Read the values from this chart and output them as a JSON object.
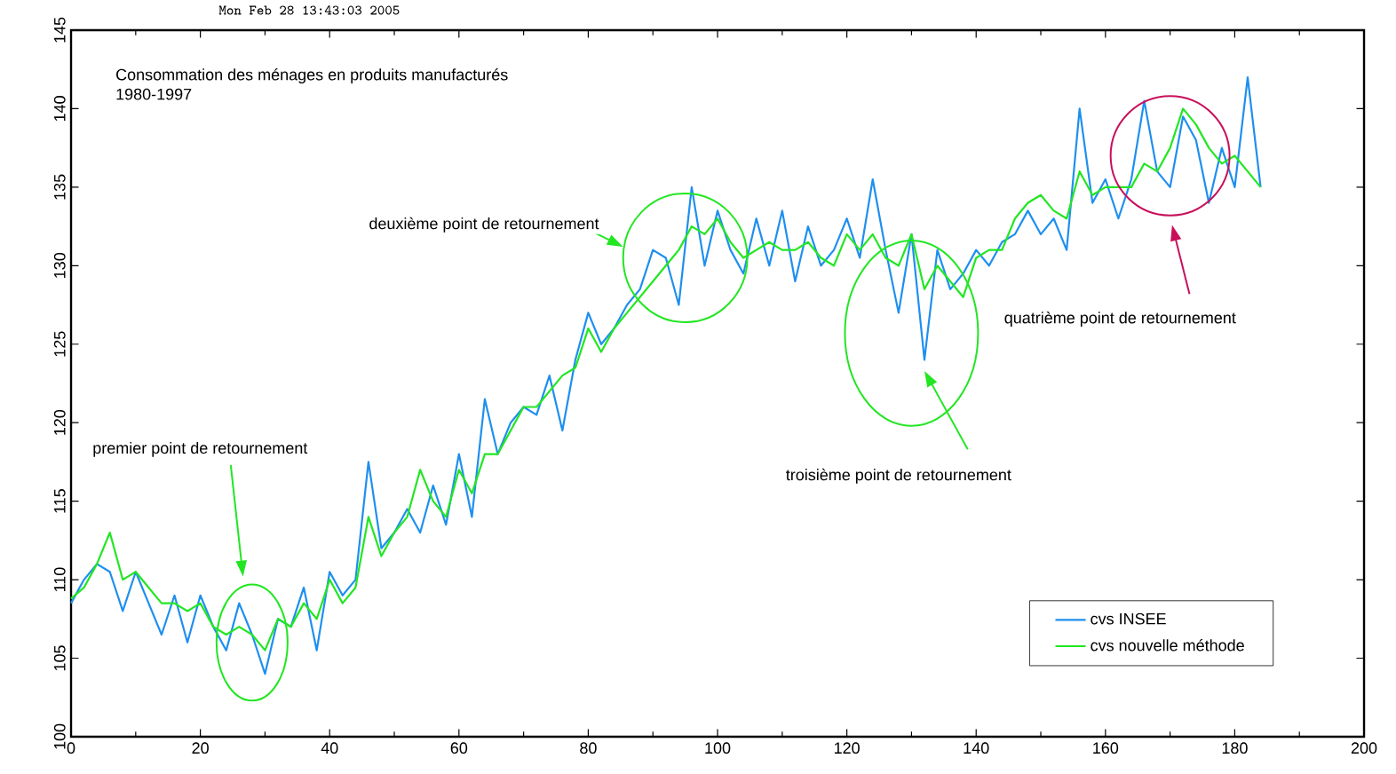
{
  "chart_data": {
    "type": "line",
    "title": "Consommation des ménages en produits manufacturés",
    "subtitle": "1980-1997",
    "annotations": [
      "Mon Feb 28 13:43:03 2005",
      "premier point de retournement",
      "deuxième point de retournement",
      "troisième point de retournement",
      "quatrième point de retournement"
    ],
    "x": [
      0,
      2,
      4,
      6,
      8,
      10,
      12,
      14,
      16,
      18,
      20,
      22,
      24,
      26,
      28,
      30,
      32,
      34,
      36,
      38,
      40,
      42,
      44,
      46,
      48,
      50,
      52,
      54,
      56,
      58,
      60,
      62,
      64,
      66,
      68,
      70,
      72,
      74,
      76,
      78,
      80,
      82,
      84,
      86,
      88,
      90,
      92,
      94,
      96,
      98,
      100,
      102,
      104,
      106,
      108,
      110,
      112,
      114,
      116,
      118,
      120,
      122,
      124,
      126,
      128,
      130,
      132,
      134,
      136,
      138,
      140,
      142,
      144,
      146,
      148,
      150,
      152,
      154,
      156,
      158,
      160,
      162,
      164,
      166,
      168,
      170,
      172,
      174,
      176,
      178,
      180,
      182,
      184
    ],
    "series": [
      {
        "name": "cvs INSEE",
        "color": "#1e8fef",
        "values": [
          108.5,
          110,
          111,
          110.5,
          108,
          110.5,
          108.5,
          106.5,
          109,
          106,
          109,
          107,
          105.5,
          108.5,
          106.5,
          104,
          107.5,
          107,
          109.5,
          105.5,
          110.5,
          109,
          110,
          117.5,
          112,
          113,
          114.5,
          113,
          116,
          113.5,
          118,
          114,
          121.5,
          118,
          120,
          121,
          120.5,
          123,
          119.5,
          124,
          127,
          125,
          126,
          127.5,
          128.5,
          131,
          130.5,
          127.5,
          135,
          130,
          133.5,
          131,
          129.5,
          133,
          130,
          133.5,
          129,
          132.5,
          130,
          131,
          133,
          130.5,
          135.5,
          131,
          127,
          132,
          124,
          131,
          128.5,
          129.5,
          131,
          130,
          131.5,
          132,
          133.5,
          132,
          133,
          131,
          140,
          134,
          135.5,
          133,
          135.5,
          140.5,
          136,
          135,
          139.5,
          138,
          134,
          137.5,
          135,
          142,
          135
        ]
      },
      {
        "name": "cvs nouvelle méthode",
        "color": "#22e622",
        "values": [
          108.8,
          109.5,
          111,
          113,
          110,
          110.5,
          109.5,
          108.5,
          108.5,
          108,
          108.5,
          107,
          106.5,
          107,
          106.5,
          105.5,
          107.5,
          107,
          108.5,
          107.5,
          110,
          108.5,
          109.5,
          114,
          111.5,
          113,
          114,
          117,
          115,
          114,
          117,
          115.5,
          118,
          118,
          119.5,
          121,
          121,
          122,
          123,
          123.5,
          126,
          124.5,
          126,
          127,
          128,
          129,
          130,
          131,
          132.5,
          132,
          133,
          131.5,
          130.5,
          131,
          131.5,
          131,
          131,
          131.5,
          130.5,
          130,
          132,
          131,
          132,
          130.5,
          130,
          132,
          128.5,
          130,
          129,
          128,
          130.5,
          131,
          131,
          133,
          134,
          134.5,
          133.5,
          133,
          136,
          134.5,
          135,
          135,
          135,
          136.5,
          136,
          137.5,
          140,
          139,
          137.5,
          136.5,
          137,
          136,
          135
        ]
      }
    ],
    "xlim": [
      0,
      200
    ],
    "ylim": [
      100,
      145
    ],
    "xticks": [
      0,
      20,
      40,
      60,
      80,
      100,
      120,
      140,
      160,
      180,
      200
    ],
    "yticks": [
      100,
      105,
      110,
      115,
      120,
      125,
      130,
      135,
      140,
      145
    ],
    "legend": "bottom right"
  }
}
